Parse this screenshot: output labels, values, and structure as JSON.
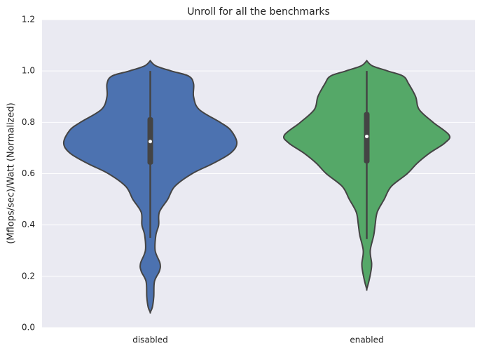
{
  "chart_data": {
    "type": "violin",
    "title": "Unroll for all the benchmarks",
    "y_label": "(Mflops/sec)/Watt (Normalized)",
    "categories": [
      "disabled",
      "enabled"
    ],
    "ylim": [
      0,
      1.2
    ],
    "yticks": [
      {
        "value": 0,
        "label": "0.0"
      },
      0.2,
      0.4,
      0.6,
      0.8,
      {
        "value": 1,
        "label": "1.0"
      },
      1.2
    ],
    "grid": true,
    "series": [
      {
        "color": "#4c72b0",
        "min": 0.35,
        "q1": 0.635,
        "median": 0.725,
        "q3": 0.82,
        "max": 1.0,
        "density_y": [
          1.04,
          1.02,
          1.0,
          0.98,
          0.95,
          0.9,
          0.85,
          0.8,
          0.77,
          0.72,
          0.68,
          0.64,
          0.6,
          0.55,
          0.5,
          0.45,
          0.4,
          0.36,
          0.3,
          0.25,
          0.22,
          0.18,
          0.12,
          0.08,
          0.06
        ],
        "density": [
          0,
          8,
          30,
          55,
          62,
          62,
          70,
          100,
          115,
          124,
          115,
          90,
          60,
          35,
          25,
          13,
          12,
          8,
          7,
          14,
          13,
          6,
          5,
          3,
          0
        ]
      },
      {
        "color": "#55a868",
        "min": 0.345,
        "q1": 0.64,
        "median": 0.745,
        "q3": 0.84,
        "max": 1.0,
        "density_y": [
          1.04,
          1.02,
          1.0,
          0.98,
          0.95,
          0.9,
          0.85,
          0.8,
          0.75,
          0.72,
          0.68,
          0.64,
          0.6,
          0.55,
          0.5,
          0.45,
          0.4,
          0.36,
          0.3,
          0.25,
          0.22,
          0.18,
          0.15
        ],
        "density": [
          0,
          8,
          30,
          52,
          60,
          70,
          75,
          95,
          118,
          112,
          90,
          72,
          58,
          35,
          25,
          15,
          12,
          10,
          5,
          7,
          6,
          3,
          0
        ]
      }
    ]
  }
}
